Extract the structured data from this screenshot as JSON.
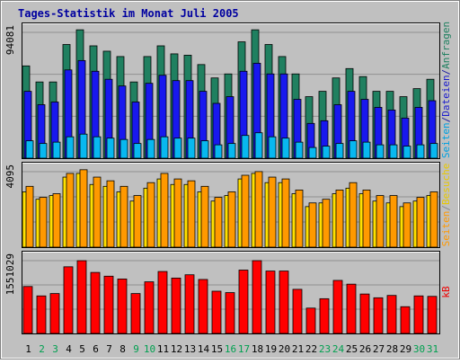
{
  "chart_data": [
    {
      "type": "bar",
      "panel": "top",
      "title": "Tages-Statistik im Monat Juli 2005",
      "y_tick_label": "94081",
      "right_axis_label": {
        "parts": [
          {
            "text": "Seiten",
            "color": "#00a0e0"
          },
          {
            "text": "/",
            "color": "#1a1aa0"
          },
          {
            "text": "Dateien",
            "color": "#1a1acc"
          },
          {
            "text": "/",
            "color": "#1a1aa0"
          },
          {
            "text": "Anfragen",
            "color": "#208060"
          }
        ]
      },
      "ylim": [
        0,
        94081
      ],
      "categories": [
        "1",
        "2",
        "3",
        "4",
        "5",
        "6",
        "7",
        "8",
        "9",
        "10",
        "11",
        "12",
        "13",
        "14",
        "15",
        "16",
        "17",
        "18",
        "19",
        "20",
        "21",
        "22",
        "23",
        "24",
        "25",
        "26",
        "27",
        "28",
        "29",
        "30",
        "31"
      ],
      "series": [
        {
          "name": "Anfragen",
          "color": "#208060",
          "values": [
            69000,
            57000,
            57000,
            85000,
            96000,
            84000,
            80000,
            76000,
            57000,
            76000,
            84000,
            78000,
            77000,
            70000,
            60000,
            63000,
            87000,
            96000,
            85000,
            76000,
            63000,
            46000,
            50000,
            60000,
            67000,
            61000,
            50000,
            50000,
            46000,
            52000,
            59000
          ]
        },
        {
          "name": "Dateien",
          "color": "#1818ee",
          "values": [
            50000,
            40000,
            42000,
            66000,
            73000,
            65000,
            59000,
            54000,
            42000,
            56000,
            62000,
            58000,
            58000,
            50000,
            41000,
            46000,
            65000,
            71000,
            63000,
            63000,
            44000,
            26000,
            28000,
            40000,
            50000,
            44000,
            38000,
            36000,
            30000,
            38000,
            43000
          ]
        },
        {
          "name": "Seiten",
          "color": "#08b8f0",
          "values": [
            13000,
            11000,
            12000,
            16000,
            18000,
            16000,
            15000,
            14000,
            11000,
            14000,
            16000,
            15000,
            15000,
            13000,
            10000,
            11000,
            17000,
            19000,
            16000,
            15000,
            12000,
            8000,
            9000,
            11000,
            13000,
            12000,
            10000,
            10000,
            9000,
            10000,
            11000
          ]
        }
      ]
    },
    {
      "type": "bar",
      "panel": "middle",
      "y_tick_label": "4095",
      "right_axis_label": {
        "parts": [
          {
            "text": "Seiten",
            "color": "#ff9900"
          },
          {
            "text": "/",
            "color": "#888888"
          },
          {
            "text": "Besuche",
            "color": "#e8c800"
          }
        ]
      },
      "ylim": [
        0,
        4095
      ],
      "categories": [
        "1",
        "2",
        "3",
        "4",
        "5",
        "6",
        "7",
        "8",
        "9",
        "10",
        "11",
        "12",
        "13",
        "14",
        "15",
        "16",
        "17",
        "18",
        "19",
        "20",
        "21",
        "22",
        "23",
        "24",
        "25",
        "26",
        "27",
        "28",
        "29",
        "30",
        "31"
      ],
      "series": [
        {
          "name": "Besuche",
          "color": "#ffe000",
          "values": [
            3000,
            2600,
            2800,
            3800,
            4000,
            3400,
            3300,
            3000,
            2500,
            3200,
            3700,
            3400,
            3400,
            3000,
            2500,
            2800,
            3700,
            4000,
            3500,
            3500,
            2900,
            2200,
            2400,
            2900,
            3200,
            2900,
            2500,
            2400,
            2200,
            2500,
            2800
          ]
        },
        {
          "name": "Seiten",
          "color": "#ff9900",
          "values": [
            3300,
            2700,
            2900,
            4000,
            4200,
            3800,
            3600,
            3300,
            2800,
            3500,
            4000,
            3700,
            3600,
            3300,
            2700,
            3000,
            3900,
            4100,
            3800,
            3700,
            3100,
            2400,
            2600,
            3100,
            3500,
            3100,
            2800,
            2800,
            2400,
            2700,
            3000
          ]
        }
      ]
    },
    {
      "type": "bar",
      "panel": "bottom",
      "y_tick_label": "1551029",
      "right_axis_label": {
        "parts": [
          {
            "text": "kB",
            "color": "#ee0000"
          }
        ]
      },
      "ylim": [
        0,
        1551029
      ],
      "categories": [
        "1",
        "2",
        "3",
        "4",
        "5",
        "6",
        "7",
        "8",
        "9",
        "10",
        "11",
        "12",
        "13",
        "14",
        "15",
        "16",
        "17",
        "18",
        "19",
        "20",
        "21",
        "22",
        "23",
        "24",
        "25",
        "26",
        "27",
        "28",
        "29",
        "30",
        "31"
      ],
      "series": [
        {
          "name": "kB",
          "color": "#ff0000",
          "values": [
            1000000,
            800000,
            850000,
            1420000,
            1550000,
            1300000,
            1220000,
            1160000,
            850000,
            1100000,
            1320000,
            1180000,
            1250000,
            1150000,
            900000,
            870000,
            1350000,
            1551029,
            1330000,
            1330000,
            940000,
            540000,
            740000,
            1130000,
            1050000,
            840000,
            760000,
            810000,
            570000,
            800000,
            790000
          ]
        }
      ]
    }
  ],
  "x_axis": {
    "labels": [
      "1",
      "2",
      "3",
      "4",
      "5",
      "6",
      "7",
      "8",
      "9",
      "10",
      "11",
      "12",
      "13",
      "14",
      "15",
      "16",
      "17",
      "18",
      "19",
      "20",
      "21",
      "22",
      "23",
      "24",
      "25",
      "26",
      "27",
      "28",
      "29",
      "30",
      "31"
    ],
    "weekend_days": [
      2,
      3,
      9,
      10,
      16,
      17,
      23,
      24,
      30,
      31
    ],
    "weekday_color": "#000000",
    "weekend_color": "#00a050"
  },
  "colors": {
    "frame": "#c0c0c0",
    "title": "#0000a0",
    "panel_bg": "#c0c0c0",
    "gridline": "#909090"
  }
}
